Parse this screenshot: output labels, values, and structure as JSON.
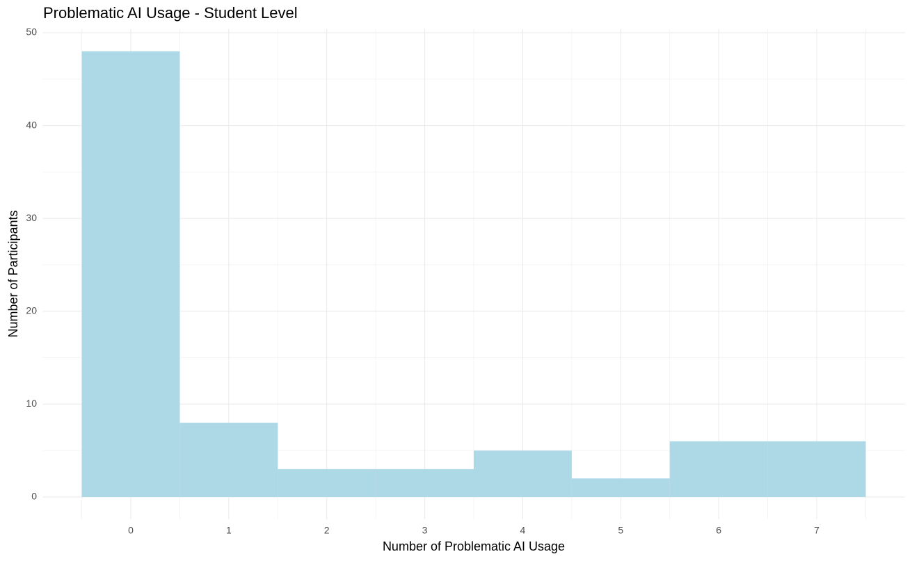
{
  "chart_data": {
    "type": "histogram",
    "title": "Problematic AI Usage - Student Level",
    "x_label": "Number of Problematic AI Usage",
    "y_label": "Number of Participants",
    "bins": [
      -0.5,
      0.5,
      1.5,
      2.5,
      3.5,
      4.5,
      5.5,
      6.5,
      7.5
    ],
    "values": [
      48,
      8,
      3,
      3,
      5,
      2,
      6,
      6
    ],
    "color": "#add8e6",
    "xlim": [
      -0.9,
      7.9
    ],
    "xticks": [
      0,
      1,
      2,
      3,
      4,
      5,
      6,
      7
    ],
    "x_minor_ticks": [
      -0.5,
      0.5,
      1.5,
      2.5,
      3.5,
      4.5,
      5.5,
      6.5,
      7.5
    ],
    "ylim": [
      -2.4,
      50.4
    ],
    "yticks": [
      0,
      10,
      20,
      30,
      40,
      50
    ],
    "y_minor_ticks": [
      5,
      15,
      25,
      35,
      45
    ],
    "grid": true
  }
}
